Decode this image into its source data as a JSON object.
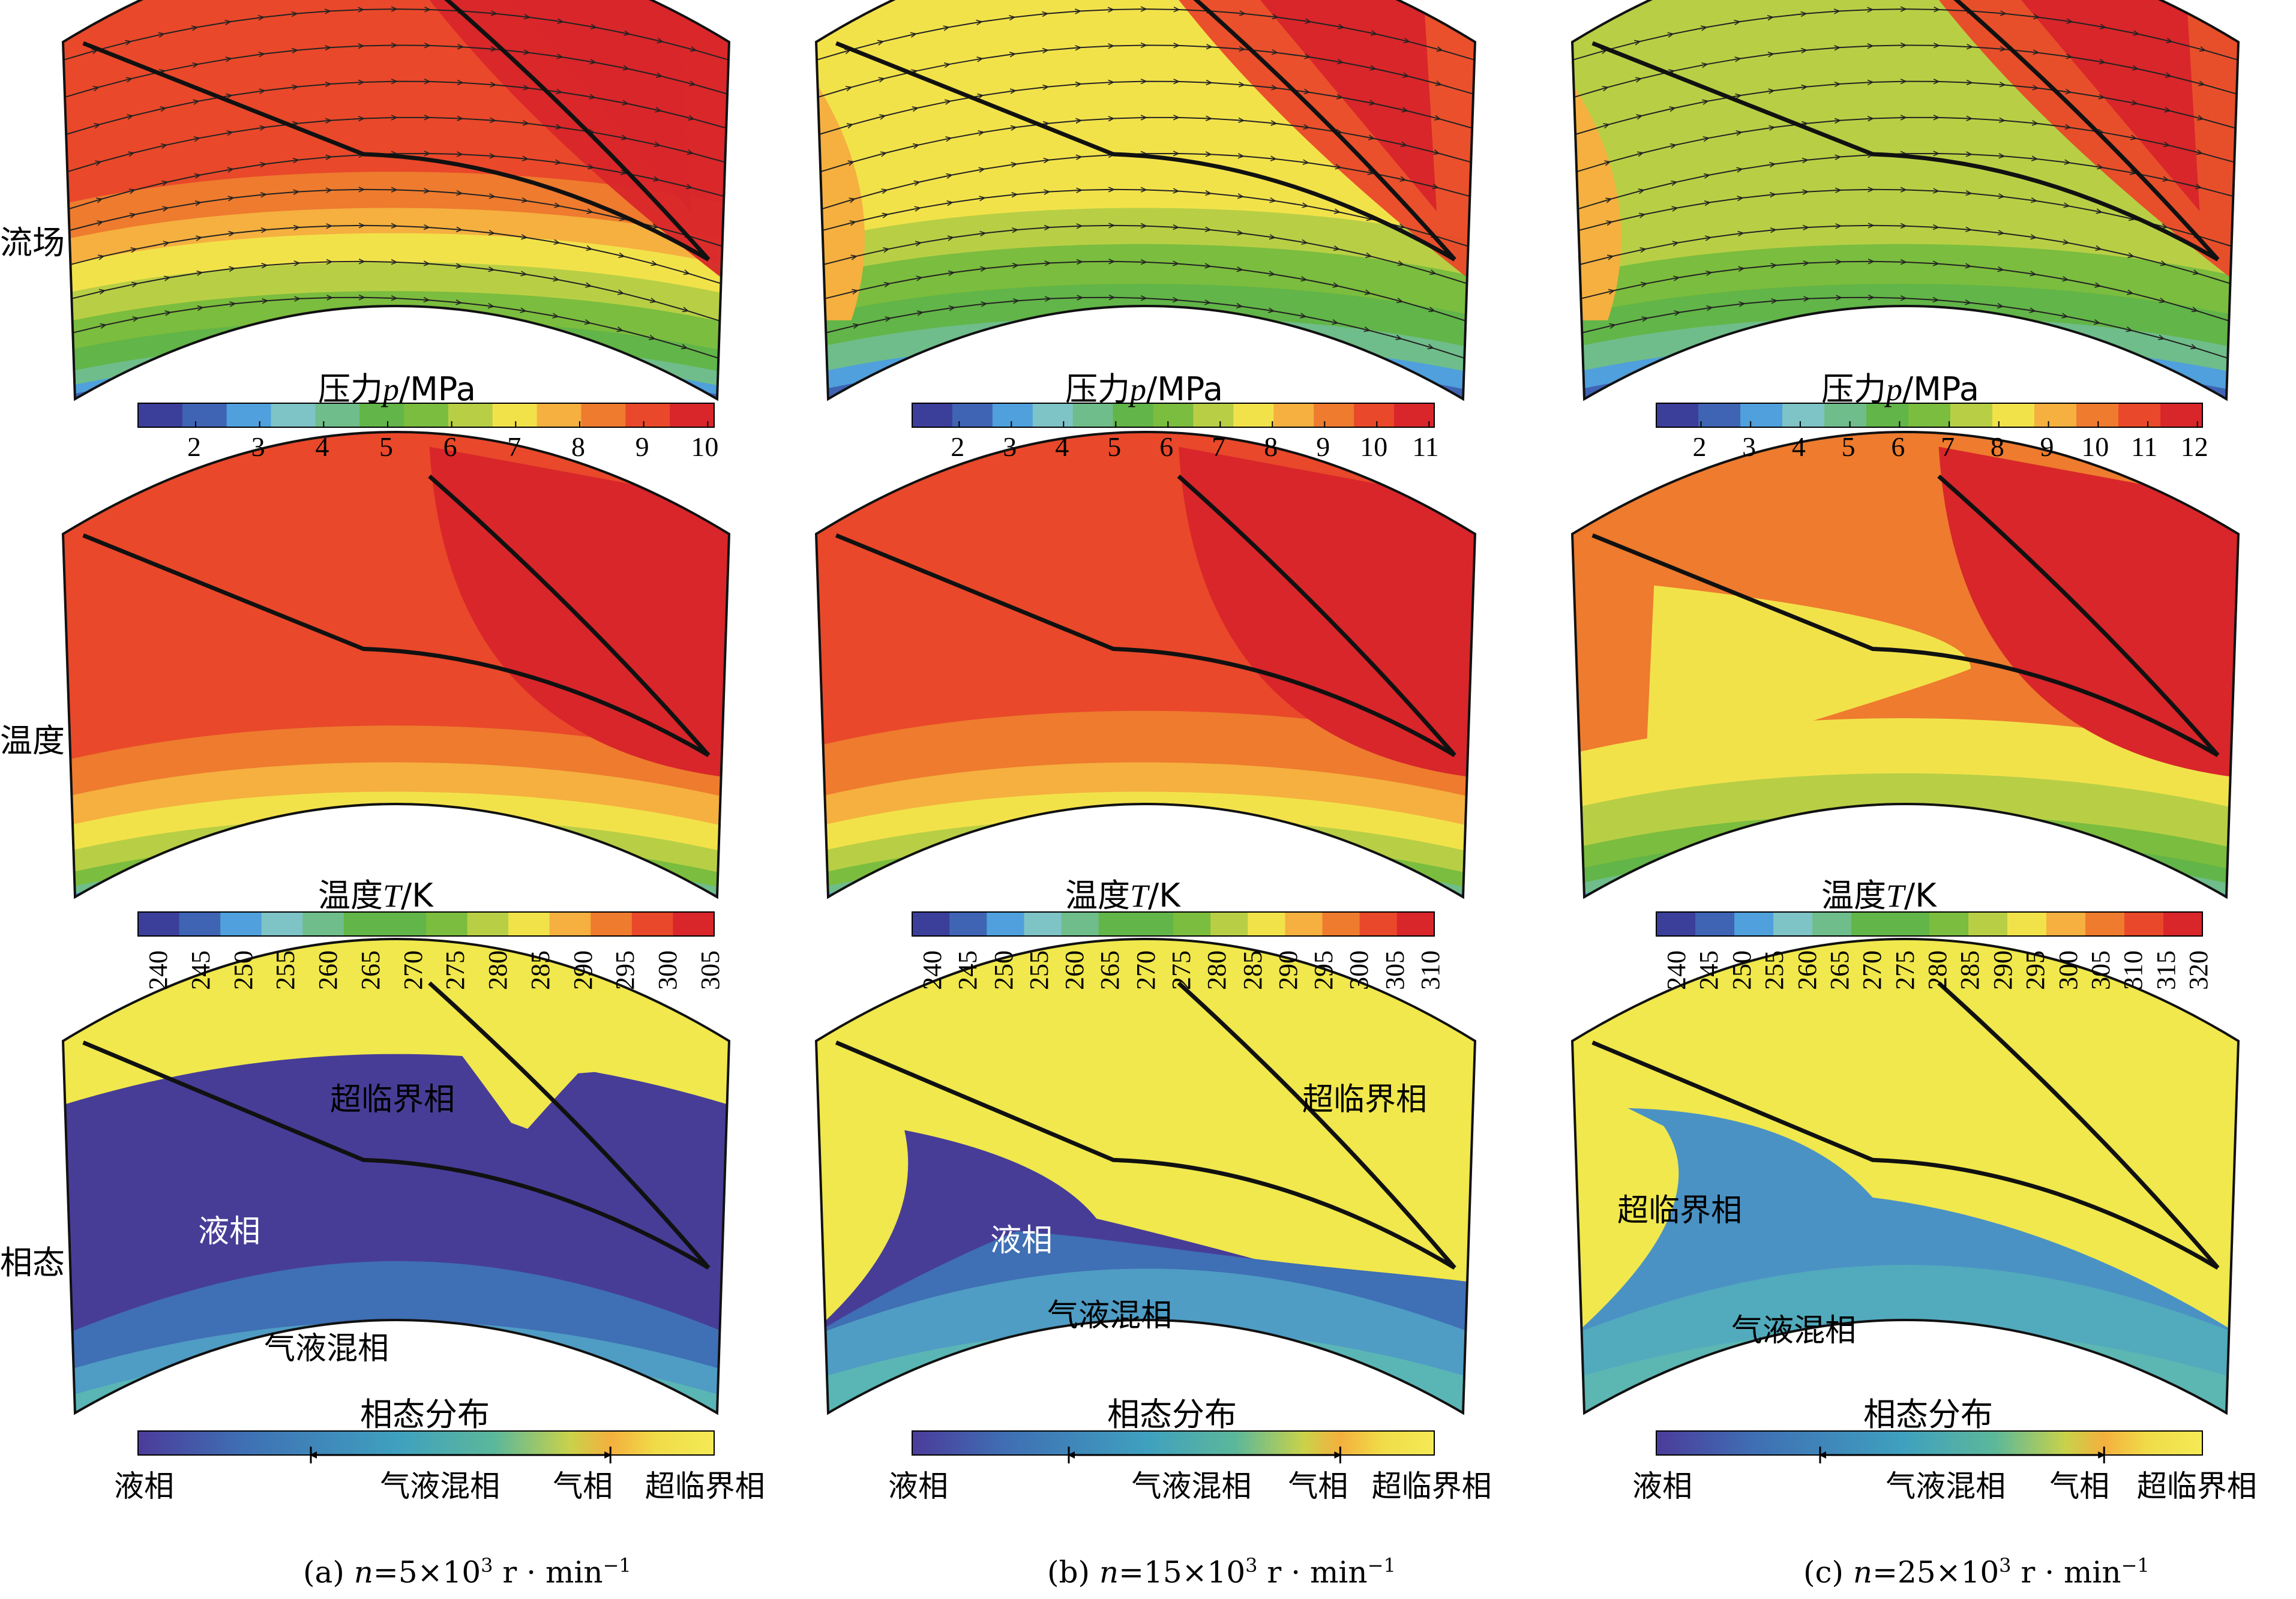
{
  "row_labels": [
    "流场",
    "温度",
    "相态"
  ],
  "captions": [
    {
      "prefix": "(a) ",
      "var": "n",
      "eq": "=5×10",
      "exp": "3",
      "unit": " r · min",
      "uexp": "−1"
    },
    {
      "prefix": "(b) ",
      "var": "n",
      "eq": "=15×10",
      "exp": "3",
      "unit": " r · min",
      "uexp": "−1"
    },
    {
      "prefix": "(c) ",
      "var": "n",
      "eq": "=25×10",
      "exp": "3",
      "unit": " r · min",
      "uexp": "−1"
    }
  ],
  "pressure": {
    "title_prefix": "压力",
    "title_var": "p",
    "title_unit": "/MPa",
    "ticks": [
      [
        "2",
        "3",
        "4",
        "5",
        "6",
        "7",
        "8",
        "9",
        "10"
      ],
      [
        "2",
        "3",
        "4",
        "5",
        "6",
        "7",
        "8",
        "9",
        "10",
        "11"
      ],
      [
        "2",
        "3",
        "4",
        "5",
        "6",
        "7",
        "8",
        "9",
        "10",
        "11",
        "12"
      ]
    ]
  },
  "temperature": {
    "title_prefix": "温度",
    "title_var": "T",
    "title_unit": "/K",
    "ticks": [
      [
        "240",
        "245",
        "250",
        "255",
        "260",
        "265",
        "270",
        "275",
        "280",
        "285",
        "290",
        "295",
        "300",
        "305"
      ],
      [
        "240",
        "245",
        "250",
        "255",
        "260",
        "265",
        "270",
        "275",
        "280",
        "285",
        "290",
        "295",
        "300",
        "305",
        "310"
      ],
      [
        "240",
        "245",
        "250",
        "255",
        "260",
        "265",
        "270",
        "275",
        "280",
        "285",
        "290",
        "295",
        "300",
        "305",
        "310",
        "315",
        "320"
      ]
    ]
  },
  "phase": {
    "title": "相态分布",
    "legend": {
      "liquid": "液相",
      "mixed": "气液混相",
      "gas": "气相",
      "super": "超临界相"
    },
    "region_labels": [
      [
        {
          "text": "超临界相",
          "cls": ""
        },
        {
          "text": "液相",
          "cls": "white"
        },
        {
          "text": "气液混相",
          "cls": ""
        }
      ],
      [
        {
          "text": "超临界相",
          "cls": ""
        },
        {
          "text": "液相",
          "cls": "white"
        },
        {
          "text": "气液混相",
          "cls": ""
        }
      ],
      [
        {
          "text": "超临界相",
          "cls": ""
        },
        {
          "text": "气液混相",
          "cls": ""
        }
      ]
    ]
  },
  "colors": {
    "jet": [
      "#3b3f99",
      "#3f64b4",
      "#4fa0dc",
      "#7ec3c6",
      "#6fbd8a",
      "#62b548",
      "#7bbd3e",
      "#b8cf45",
      "#f2e24a",
      "#f5b03f",
      "#ee7b2e",
      "#e9482a",
      "#d8262a"
    ],
    "phase": [
      "#4b3c9a",
      "#3f78b8",
      "#49a5c0",
      "#f0e14a"
    ],
    "super": "#f0e84c",
    "liquid": "#473d97"
  }
}
